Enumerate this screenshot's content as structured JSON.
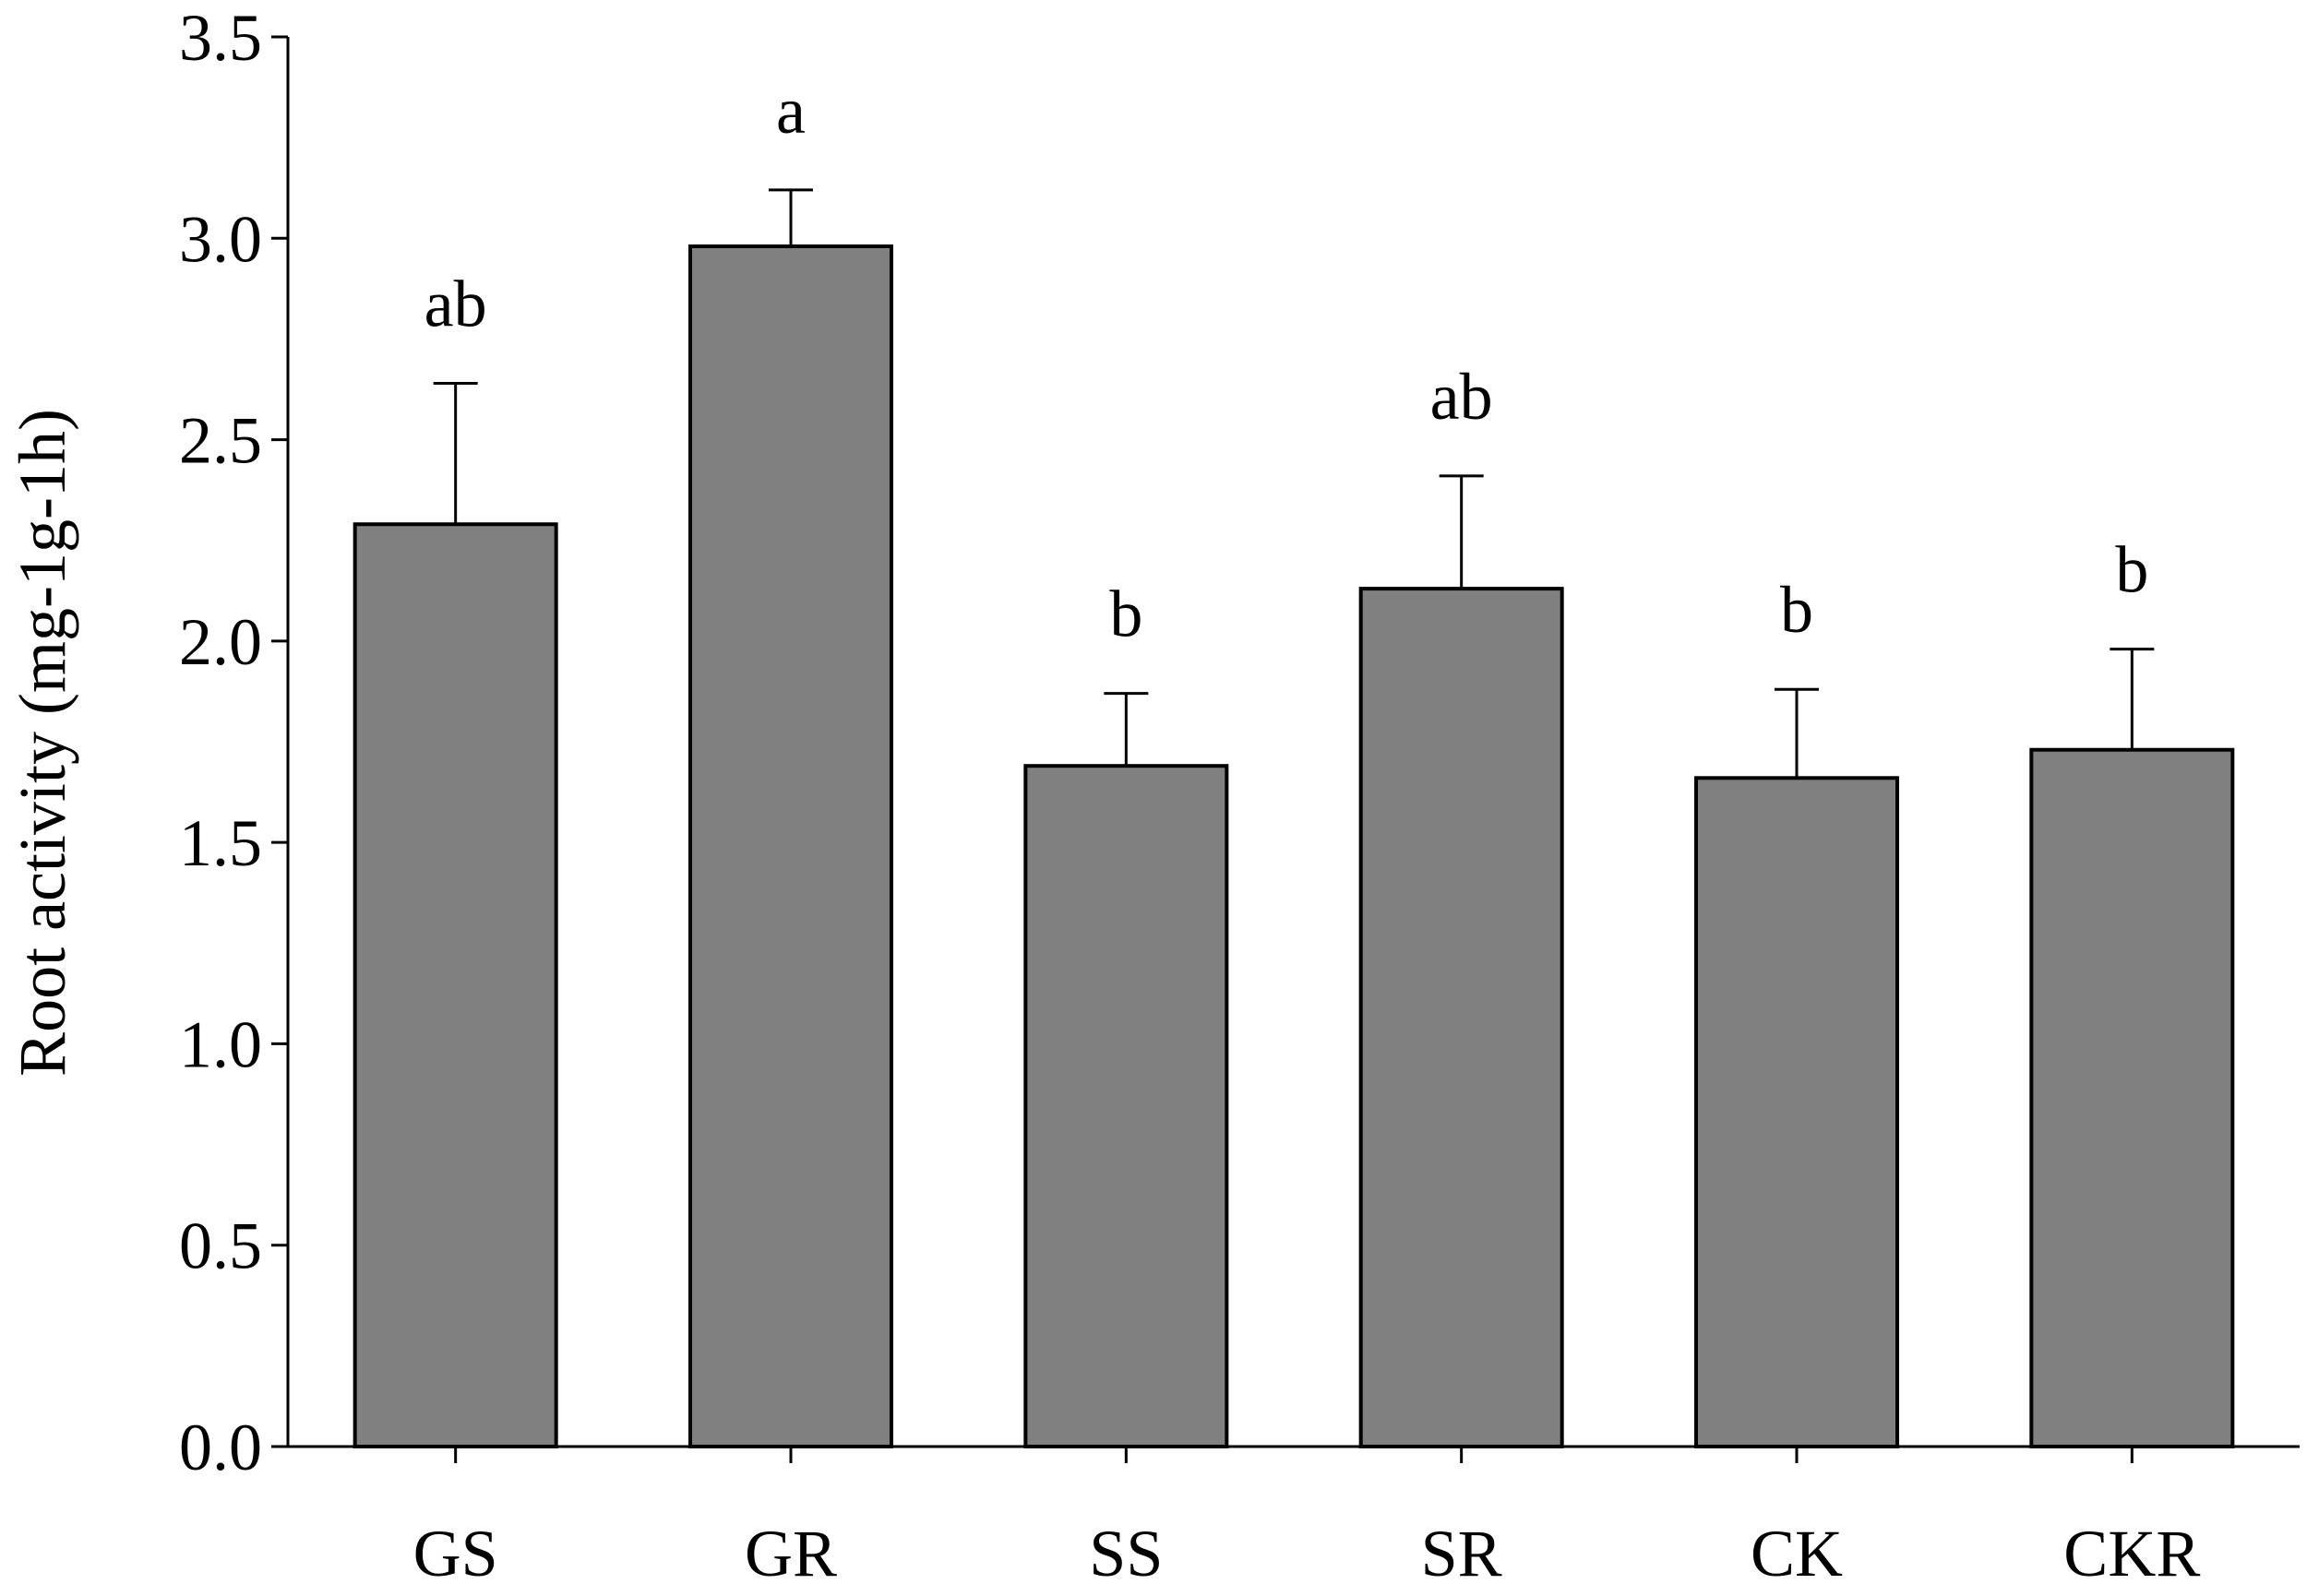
{
  "chart_data": {
    "type": "bar",
    "title": "",
    "xlabel": "",
    "ylabel": "Root activity (mg-1g-1h)",
    "ylim": [
      0,
      3.5
    ],
    "yticks": [
      "0.0",
      "0.5",
      "1.0",
      "1.5",
      "2.0",
      "2.5",
      "3.0",
      "3.5"
    ],
    "categories": [
      "GS",
      "GR",
      "SS",
      "SR",
      "CK",
      "CKR"
    ],
    "series": [
      {
        "values": [
          2.29,
          2.98,
          1.69,
          2.13,
          1.66,
          1.73
        ],
        "errors": [
          0.35,
          0.14,
          0.18,
          0.28,
          0.22,
          0.25
        ],
        "significance": [
          "ab",
          "a",
          "b",
          "ab",
          "b",
          "b"
        ]
      }
    ],
    "bar_color": "#808080",
    "edge_color": "#000000",
    "grid": false,
    "legend": "none"
  }
}
